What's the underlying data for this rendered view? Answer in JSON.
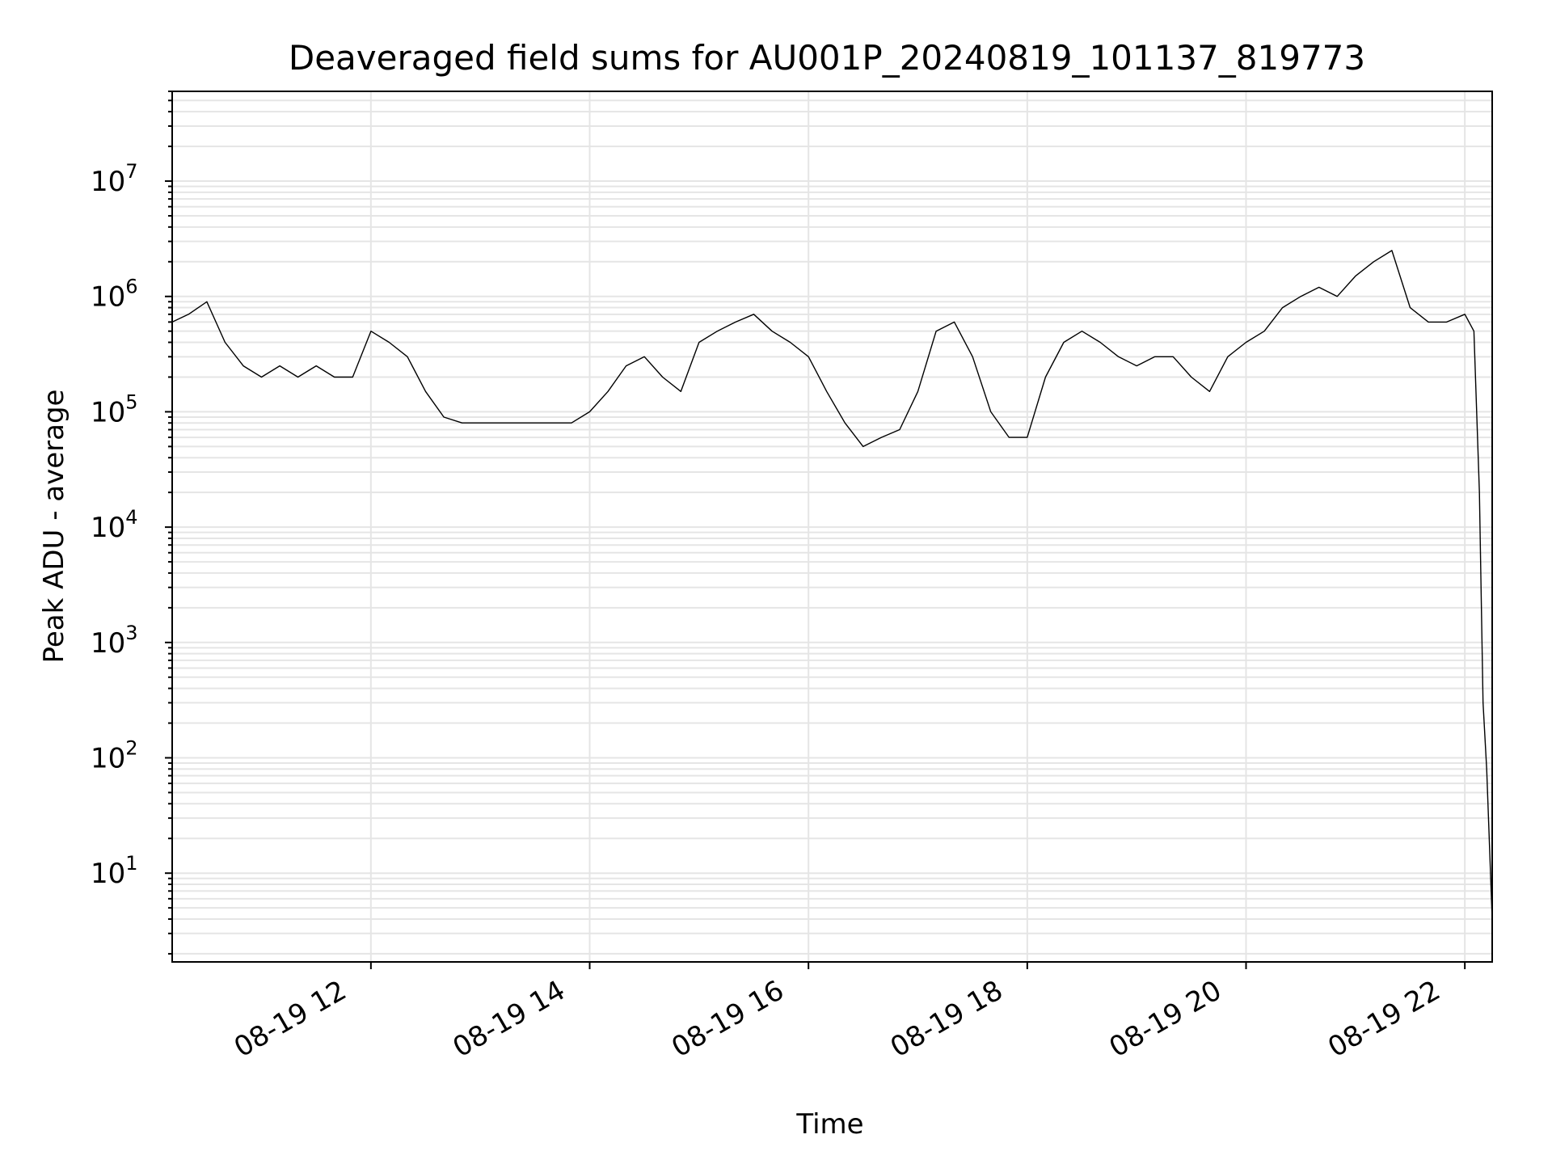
{
  "chart_data": {
    "type": "line",
    "title": "Deaveraged field sums for AU001P_20240819_101137_819773",
    "xlabel": "Time",
    "ylabel": "Peak ADU - average",
    "yscale": "log",
    "ylim": [
      1.7,
      60000000
    ],
    "xlim": [
      "2024-08-19 10:11",
      "2024-08-19 22:15"
    ],
    "grid": true,
    "line_color": "#000000",
    "grid_color": "#e5e5e5",
    "x_tick_labels": [
      "08-19 12",
      "08-19 14",
      "08-19 16",
      "08-19 18",
      "08-19 20",
      "08-19 22"
    ],
    "x_ticks": [
      "2024-08-19 12:00",
      "2024-08-19 14:00",
      "2024-08-19 16:00",
      "2024-08-19 18:00",
      "2024-08-19 20:00",
      "2024-08-19 22:00"
    ],
    "y_tick_labels": [
      {
        "base": "10",
        "exp": "1"
      },
      {
        "base": "10",
        "exp": "2"
      },
      {
        "base": "10",
        "exp": "3"
      },
      {
        "base": "10",
        "exp": "4"
      },
      {
        "base": "10",
        "exp": "5"
      },
      {
        "base": "10",
        "exp": "6"
      },
      {
        "base": "10",
        "exp": "7"
      }
    ],
    "y_ticks": [
      10,
      100,
      1000,
      10000,
      100000,
      1000000,
      10000000
    ],
    "series": [
      {
        "x": [
          "2024-08-19 10:11",
          "2024-08-19 10:20",
          "2024-08-19 10:30",
          "2024-08-19 10:40",
          "2024-08-19 10:50",
          "2024-08-19 11:00",
          "2024-08-19 11:10",
          "2024-08-19 11:20",
          "2024-08-19 11:30",
          "2024-08-19 11:40",
          "2024-08-19 11:50",
          "2024-08-19 12:00",
          "2024-08-19 12:10",
          "2024-08-19 12:20",
          "2024-08-19 12:30",
          "2024-08-19 12:40",
          "2024-08-19 12:50",
          "2024-08-19 13:00",
          "2024-08-19 13:10",
          "2024-08-19 13:20",
          "2024-08-19 13:30",
          "2024-08-19 13:40",
          "2024-08-19 13:50",
          "2024-08-19 14:00",
          "2024-08-19 14:10",
          "2024-08-19 14:20",
          "2024-08-19 14:30",
          "2024-08-19 14:40",
          "2024-08-19 14:50",
          "2024-08-19 15:00",
          "2024-08-19 15:10",
          "2024-08-19 15:20",
          "2024-08-19 15:30",
          "2024-08-19 15:40",
          "2024-08-19 15:50",
          "2024-08-19 16:00",
          "2024-08-19 16:10",
          "2024-08-19 16:20",
          "2024-08-19 16:30",
          "2024-08-19 16:40",
          "2024-08-19 16:50",
          "2024-08-19 17:00",
          "2024-08-19 17:10",
          "2024-08-19 17:20",
          "2024-08-19 17:30",
          "2024-08-19 17:40",
          "2024-08-19 17:50",
          "2024-08-19 18:00",
          "2024-08-19 18:10",
          "2024-08-19 18:20",
          "2024-08-19 18:30",
          "2024-08-19 18:40",
          "2024-08-19 18:50",
          "2024-08-19 19:00",
          "2024-08-19 19:10",
          "2024-08-19 19:20",
          "2024-08-19 19:30",
          "2024-08-19 19:40",
          "2024-08-19 19:50",
          "2024-08-19 20:00",
          "2024-08-19 20:10",
          "2024-08-19 20:20",
          "2024-08-19 20:30",
          "2024-08-19 20:40",
          "2024-08-19 20:50",
          "2024-08-19 21:00",
          "2024-08-19 21:10",
          "2024-08-19 21:20",
          "2024-08-19 21:30",
          "2024-08-19 21:40",
          "2024-08-19 21:50",
          "2024-08-19 22:00",
          "2024-08-19 22:05",
          "2024-08-19 22:08",
          "2024-08-19 22:10",
          "2024-08-19 22:12",
          "2024-08-19 22:15"
        ],
        "values": [
          600000,
          700000,
          900000,
          400000,
          250000,
          200000,
          250000,
          200000,
          250000,
          200000,
          200000,
          500000,
          400000,
          300000,
          150000,
          90000,
          80000,
          80000,
          80000,
          80000,
          80000,
          80000,
          80000,
          100000,
          150000,
          250000,
          300000,
          200000,
          150000,
          400000,
          500000,
          600000,
          700000,
          500000,
          400000,
          300000,
          150000,
          80000,
          50000,
          60000,
          70000,
          150000,
          500000,
          600000,
          300000,
          100000,
          60000,
          60000,
          200000,
          400000,
          500000,
          400000,
          300000,
          250000,
          300000,
          300000,
          200000,
          150000,
          300000,
          400000,
          500000,
          800000,
          1000000,
          1200000,
          1000000,
          1500000,
          2000000,
          2500000,
          800000,
          600000,
          600000,
          700000,
          500000,
          20000,
          300,
          80,
          4
        ]
      }
    ]
  }
}
